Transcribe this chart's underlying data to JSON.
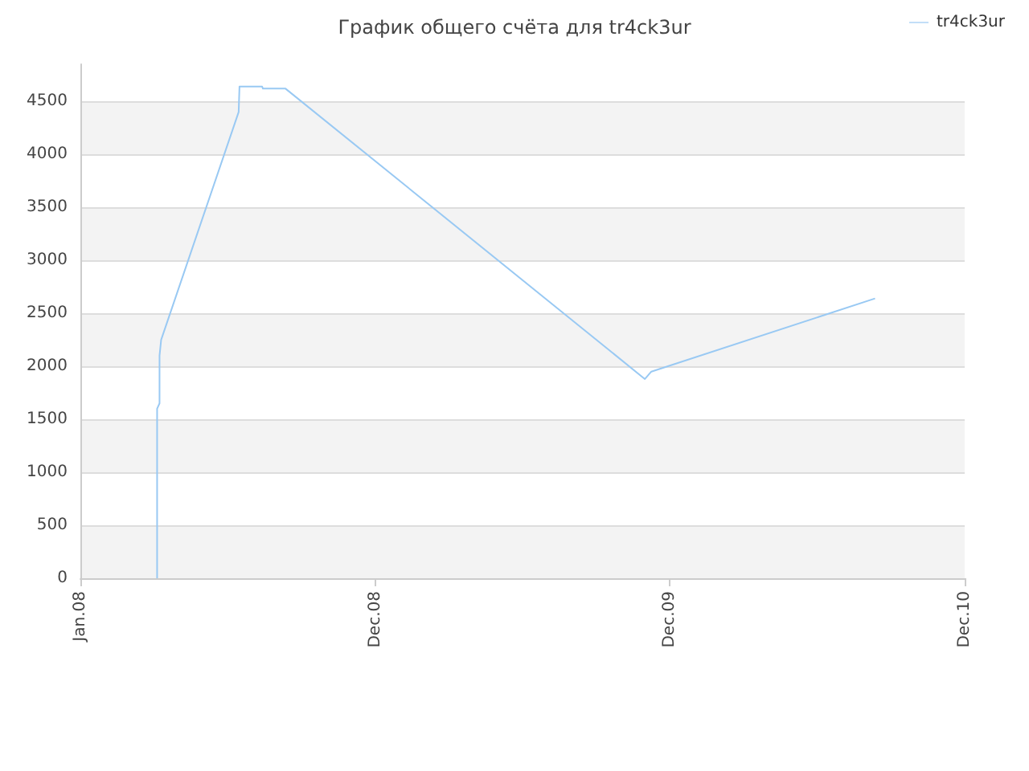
{
  "chart_data": {
    "type": "line",
    "title": "График общего счёта для tr4ck3ur",
    "series": [
      {
        "name": "tr4ck3ur",
        "color": "#99c9f3",
        "x": [
          "2008-04-05",
          "2008-04-05",
          "2008-04-08",
          "2008-04-08",
          "2008-04-10",
          "2008-07-15",
          "2008-07-16",
          "2008-08-13",
          "2008-08-14",
          "2008-09-11",
          "2009-11-30",
          "2009-12-08",
          "2010-09-11"
        ],
        "values": [
          0,
          1600,
          1650,
          2100,
          2250,
          4400,
          4640,
          4640,
          4620,
          4620,
          1880,
          1950,
          2640
        ]
      }
    ],
    "xlim": [
      "2008-01-01",
      "2010-12-31"
    ],
    "xticks": [
      {
        "value": "2008-01-01",
        "label": "Jan.08"
      },
      {
        "value": "2008-12-31",
        "label": "Dec.08"
      },
      {
        "value": "2009-12-31",
        "label": "Dec.09"
      },
      {
        "value": "2010-12-31",
        "label": "Dec.10"
      }
    ],
    "ylim": [
      0,
      4850
    ],
    "yticks": [
      0,
      500,
      1000,
      1500,
      2000,
      2500,
      3000,
      3500,
      4000,
      4500
    ],
    "grid": "y",
    "legend": "top right",
    "marker": "none",
    "line_style": "solid"
  }
}
